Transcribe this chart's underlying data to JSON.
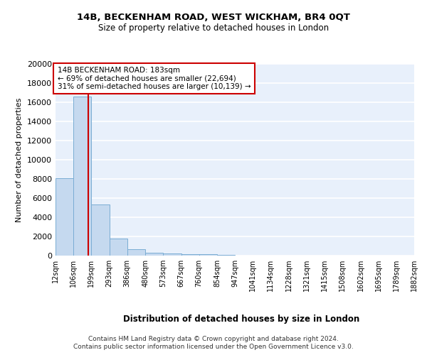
{
  "title1": "14B, BECKENHAM ROAD, WEST WICKHAM, BR4 0QT",
  "title2": "Size of property relative to detached houses in London",
  "xlabel": "Distribution of detached houses by size in London",
  "ylabel": "Number of detached properties",
  "bar_color": "#c5d9ef",
  "bar_edge_color": "#7aadd4",
  "background_color": "#e8f0fb",
  "grid_color": "#ffffff",
  "bin_edges": [
    12,
    106,
    199,
    293,
    386,
    480,
    573,
    667,
    760,
    854,
    947,
    1041,
    1134,
    1228,
    1321,
    1415,
    1508,
    1602,
    1695,
    1789,
    1882
  ],
  "bar_heights": [
    8100,
    16600,
    5300,
    1750,
    700,
    300,
    200,
    175,
    150,
    50,
    0,
    0,
    0,
    0,
    0,
    0,
    0,
    0,
    0,
    0
  ],
  "property_size": 183,
  "red_line_color": "#cc0000",
  "annotation_text": "14B BECKENHAM ROAD: 183sqm\n← 69% of detached houses are smaller (22,694)\n31% of semi-detached houses are larger (10,139) →",
  "annotation_box_color": "#cc0000",
  "ylim": [
    0,
    20000
  ],
  "yticks": [
    0,
    2000,
    4000,
    6000,
    8000,
    10000,
    12000,
    14000,
    16000,
    18000,
    20000
  ],
  "footnote1": "Contains HM Land Registry data © Crown copyright and database right 2024.",
  "footnote2": "Contains public sector information licensed under the Open Government Licence v3.0."
}
